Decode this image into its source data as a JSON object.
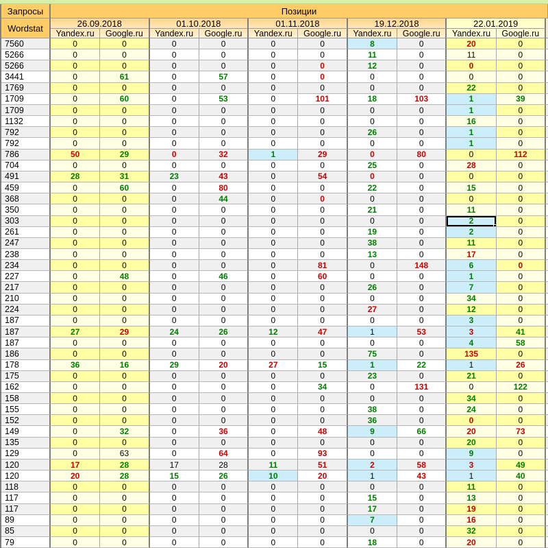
{
  "header": {
    "queries": "Запросы",
    "positions": "Позиции",
    "wordstat": "Wordstat",
    "dates": [
      "26.09.2018",
      "01.10.2018",
      "01.11.2018",
      "19.12.2018",
      "22.01.2019"
    ],
    "engines": [
      "Yandex.ru",
      "Google.ru"
    ]
  },
  "colors": {
    "improved_text": "#007d00",
    "worsened_text": "#c80000",
    "top10_highlight_bg": "#cbeefa",
    "yellow_column_bg": "#ffffa4",
    "header_bg": "#ffcc66",
    "top_strip_bg": "#d8efa9"
  },
  "cell_encoding": "value|color(g=green,r=red,k=black)|flags(b=blue top-10 highlight, s=selected cell)",
  "rows": [
    {
      "wordstat": "7560",
      "cells": [
        "0",
        "0",
        "0",
        "0",
        "0",
        "0",
        "8|g|b",
        "0",
        "20|r",
        "0"
      ]
    },
    {
      "wordstat": "5266",
      "cells": [
        "0",
        "0",
        "0",
        "0",
        "0",
        "0",
        "11|g",
        "0",
        "11",
        "0"
      ]
    },
    {
      "wordstat": "5266",
      "cells": [
        "0",
        "0",
        "0",
        "0",
        "0",
        "0|r",
        "12|g",
        "0",
        "0|r",
        "0"
      ]
    },
    {
      "wordstat": "3441",
      "cells": [
        "0",
        "61|g",
        "0",
        "57|g",
        "0",
        "0|r",
        "0",
        "0",
        "0",
        "0"
      ]
    },
    {
      "wordstat": "1769",
      "cells": [
        "0",
        "0",
        "0",
        "0",
        "0",
        "0",
        "0",
        "0",
        "22|g",
        "0"
      ]
    },
    {
      "wordstat": "1709",
      "cells": [
        "0",
        "60|g",
        "0",
        "53|g",
        "0",
        "101|r",
        "18|g",
        "103|r",
        "1|g|b",
        "39|g"
      ]
    },
    {
      "wordstat": "1709",
      "cells": [
        "0",
        "0",
        "0",
        "0",
        "0",
        "0",
        "0",
        "0",
        "1|g|b",
        "0"
      ]
    },
    {
      "wordstat": "1132",
      "cells": [
        "0",
        "0",
        "0",
        "0",
        "0",
        "0",
        "0",
        "0",
        "16|g",
        "0"
      ]
    },
    {
      "wordstat": "792",
      "cells": [
        "0",
        "0",
        "0",
        "0",
        "0",
        "0",
        "26|g",
        "0",
        "1|g|b",
        "0"
      ]
    },
    {
      "wordstat": "792",
      "cells": [
        "0",
        "0",
        "0",
        "0",
        "0",
        "0",
        "0",
        "0",
        "1|g|b",
        "0"
      ]
    },
    {
      "wordstat": "786",
      "cells": [
        "50|r",
        "29|g",
        "0|r",
        "32|r",
        "1|g|b",
        "29|r",
        "0|r",
        "80|r",
        "0",
        "112|r"
      ]
    },
    {
      "wordstat": "704",
      "cells": [
        "0",
        "0",
        "0",
        "0",
        "0",
        "0",
        "25|g",
        "0",
        "28|r",
        "0"
      ]
    },
    {
      "wordstat": "491",
      "cells": [
        "28|g",
        "31|g",
        "23|g",
        "43|r",
        "0",
        "54|r",
        "0|r",
        "0",
        "0",
        "0"
      ]
    },
    {
      "wordstat": "459",
      "cells": [
        "0",
        "60|g",
        "0",
        "80|r",
        "0",
        "0",
        "22|g",
        "0",
        "15|g",
        "0"
      ]
    },
    {
      "wordstat": "368",
      "cells": [
        "0",
        "0",
        "0",
        "44|g",
        "0",
        "0|r",
        "0",
        "0",
        "0",
        "0"
      ]
    },
    {
      "wordstat": "350",
      "cells": [
        "0",
        "0",
        "0",
        "0",
        "0",
        "0",
        "21|g",
        "0",
        "11|g",
        "0"
      ]
    },
    {
      "wordstat": "303",
      "cells": [
        "0",
        "0",
        "0",
        "0",
        "0",
        "0",
        "0",
        "0",
        "2|g|bs",
        "0"
      ]
    },
    {
      "wordstat": "261",
      "cells": [
        "0",
        "0",
        "0",
        "0",
        "0",
        "0",
        "19|g",
        "0",
        "2|g|b",
        "0"
      ]
    },
    {
      "wordstat": "247",
      "cells": [
        "0",
        "0",
        "0",
        "0",
        "0",
        "0",
        "38|g",
        "0",
        "11|g",
        "0"
      ]
    },
    {
      "wordstat": "238",
      "cells": [
        "0",
        "0",
        "0",
        "0",
        "0",
        "0",
        "13|g",
        "0",
        "17|r",
        "0"
      ]
    },
    {
      "wordstat": "234",
      "cells": [
        "0",
        "0",
        "0",
        "0",
        "0",
        "81|r",
        "0",
        "148|r",
        "6|g|b",
        "0|r"
      ]
    },
    {
      "wordstat": "227",
      "cells": [
        "0",
        "48|g",
        "0",
        "46|g",
        "0",
        "60|r",
        "0",
        "0",
        "1|g|b",
        "0"
      ]
    },
    {
      "wordstat": "217",
      "cells": [
        "0",
        "0",
        "0",
        "0",
        "0",
        "0",
        "26|g",
        "0",
        "7|g|b",
        "0"
      ]
    },
    {
      "wordstat": "210",
      "cells": [
        "0",
        "0",
        "0",
        "0",
        "0",
        "0",
        "0",
        "0",
        "34|g",
        "0"
      ]
    },
    {
      "wordstat": "224",
      "cells": [
        "0",
        "0",
        "0",
        "0",
        "0",
        "0",
        "27|r",
        "0",
        "12|g",
        "0"
      ]
    },
    {
      "wordstat": "187",
      "cells": [
        "0",
        "0",
        "0",
        "0",
        "0",
        "0",
        "0",
        "0",
        "3|g|b",
        "0"
      ]
    },
    {
      "wordstat": "187",
      "cells": [
        "27|g",
        "29|r",
        "24|g",
        "26|g",
        "12|g",
        "47|r",
        "1|k|b",
        "53|r",
        "3|r|b",
        "41|g"
      ]
    },
    {
      "wordstat": "187",
      "cells": [
        "0",
        "0",
        "0",
        "0",
        "0",
        "0",
        "0",
        "0",
        "4|g|b",
        "58|g"
      ]
    },
    {
      "wordstat": "186",
      "cells": [
        "0",
        "0",
        "0",
        "0",
        "0",
        "0",
        "75|g",
        "0",
        "135|r",
        "0"
      ]
    },
    {
      "wordstat": "178",
      "cells": [
        "36|g",
        "16|g",
        "29|g",
        "20|r",
        "27|r",
        "15|g",
        "1|g|b",
        "22|g",
        "1|k|b",
        "26|r"
      ]
    },
    {
      "wordstat": "175",
      "cells": [
        "0",
        "0",
        "0",
        "0",
        "0",
        "0",
        "23|g",
        "0",
        "21|g",
        "0"
      ]
    },
    {
      "wordstat": "162",
      "cells": [
        "0",
        "0",
        "0",
        "0",
        "0",
        "34|g",
        "0",
        "131|r",
        "0",
        "122|g"
      ]
    },
    {
      "wordstat": "158",
      "cells": [
        "0",
        "0",
        "0",
        "0",
        "0",
        "0",
        "0",
        "0",
        "34|g",
        "0"
      ]
    },
    {
      "wordstat": "155",
      "cells": [
        "0",
        "0",
        "0",
        "0",
        "0",
        "0",
        "38|g",
        "0",
        "24|g",
        "0"
      ]
    },
    {
      "wordstat": "152",
      "cells": [
        "0",
        "0",
        "0",
        "0",
        "0",
        "0",
        "36|g",
        "0",
        "0|r",
        "0"
      ]
    },
    {
      "wordstat": "149",
      "cells": [
        "0",
        "32|g",
        "0",
        "36|r",
        "0",
        "48|r",
        "9|g|b",
        "66|g",
        "20|r",
        "73|r"
      ]
    },
    {
      "wordstat": "135",
      "cells": [
        "0",
        "0",
        "0",
        "0",
        "0",
        "0",
        "0",
        "0",
        "20|g",
        "0"
      ]
    },
    {
      "wordstat": "129",
      "cells": [
        "0",
        "63",
        "0",
        "64|r",
        "0",
        "93|r",
        "0",
        "0",
        "9|g|b",
        "0"
      ]
    },
    {
      "wordstat": "120",
      "cells": [
        "17|r",
        "28|g",
        "17",
        "28",
        "11|g",
        "51|r",
        "2|r|b",
        "58|r",
        "3|r|b",
        "49|g"
      ]
    },
    {
      "wordstat": "120",
      "cells": [
        "20|r",
        "28|g",
        "15|g",
        "26|g",
        "10|g|b",
        "20|r",
        "1|k|b",
        "43|r",
        "1|k|b",
        "40|g"
      ]
    },
    {
      "wordstat": "118",
      "cells": [
        "0",
        "0",
        "0",
        "0",
        "0",
        "0",
        "0",
        "0",
        "11|g",
        "0"
      ]
    },
    {
      "wordstat": "117",
      "cells": [
        "0",
        "0",
        "0",
        "0",
        "0",
        "0",
        "15|g",
        "0",
        "13|g",
        "0"
      ]
    },
    {
      "wordstat": "117",
      "cells": [
        "0",
        "0",
        "0",
        "0",
        "0",
        "0",
        "17|g",
        "0",
        "19|r",
        "0"
      ]
    },
    {
      "wordstat": "89",
      "cells": [
        "0",
        "0",
        "0",
        "0",
        "0",
        "0",
        "7|g|b",
        "0",
        "16|r",
        "0"
      ]
    },
    {
      "wordstat": "85",
      "cells": [
        "0",
        "0",
        "0",
        "0",
        "0",
        "0",
        "0",
        "0",
        "32|g",
        "0"
      ]
    },
    {
      "wordstat": "79",
      "cells": [
        "0",
        "0",
        "0",
        "0",
        "0",
        "0",
        "18|g",
        "0",
        "20|r",
        "0"
      ]
    }
  ]
}
